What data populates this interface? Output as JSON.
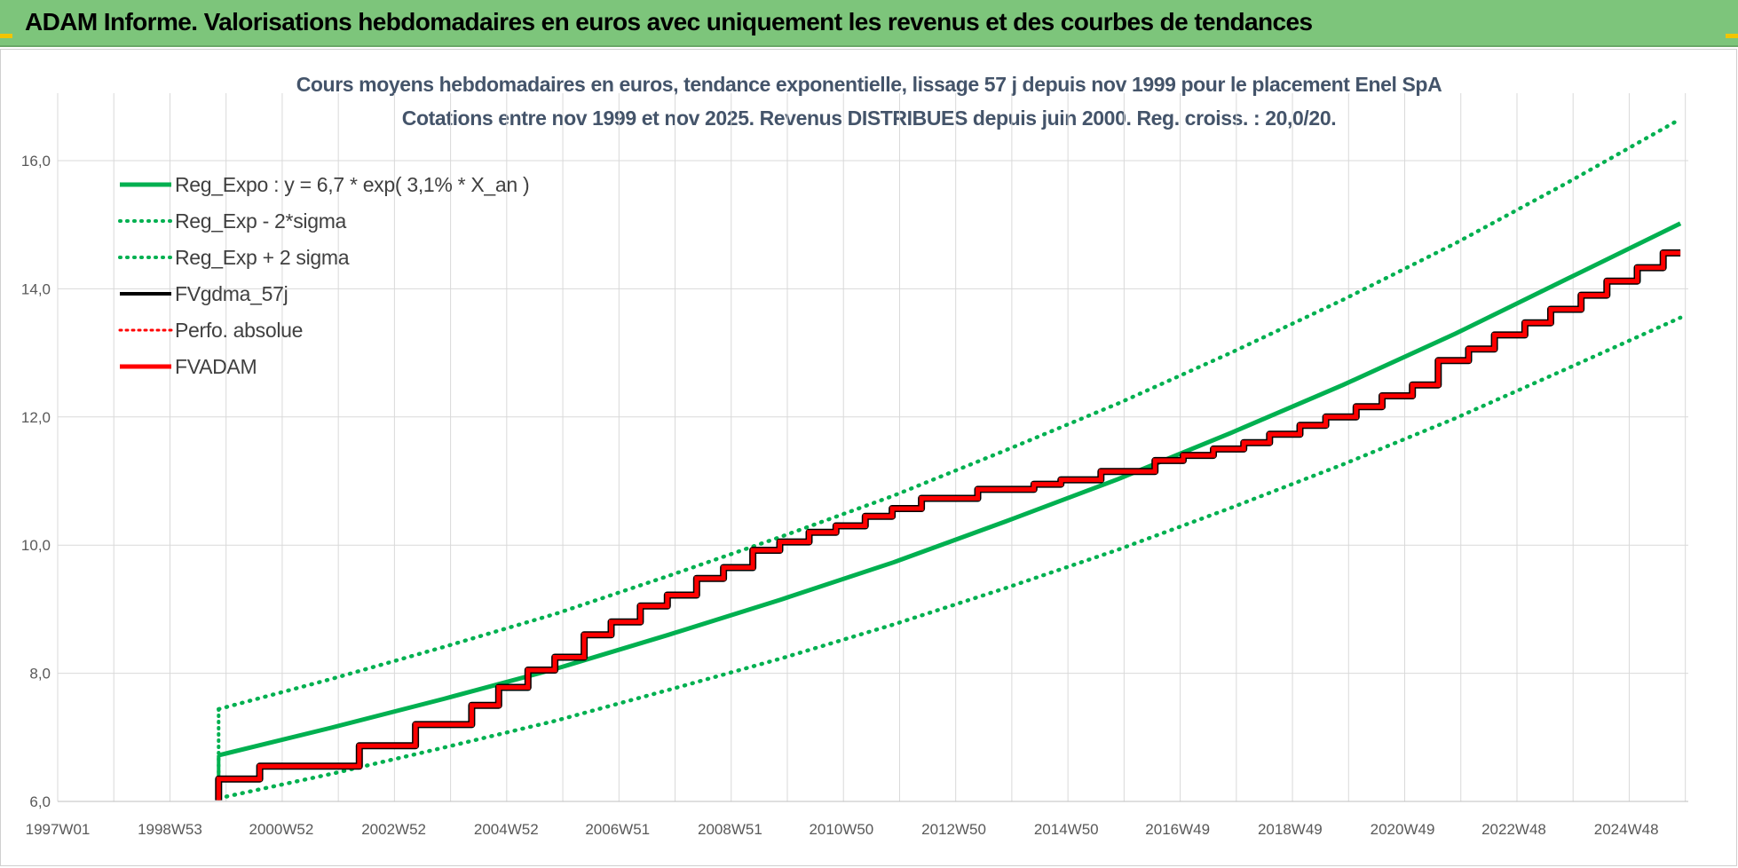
{
  "header": {
    "title": "ADAM Informe. Valorisations hebdomadaires en euros avec uniquement les revenus et des courbes de tendances"
  },
  "colors": {
    "banner": "#7dc57b",
    "trend": "#00b050",
    "fvadam": "#ff0000",
    "fvgdma": "#000000",
    "grid": "#d9d9d9"
  },
  "chart_data": {
    "type": "line",
    "title": "Cours moyens hebdomadaires en euros, tendance exponentielle, lissage 57 j depuis nov 1999 pour le placement Enel SpA",
    "subtitle": "Cotations entre nov 1999 et nov 2025. Revenus DISTRIBUES depuis juin 2000. Reg. croiss. : 20,0/20.",
    "xlabel": "",
    "ylabel": "",
    "ylim": [
      6.0,
      16.0
    ],
    "xlim": [
      "1997W01",
      "2026W48"
    ],
    "x_tick_labels": [
      "1997W01",
      "1998W53",
      "2000W52",
      "2002W52",
      "2004W52",
      "2006W51",
      "2008W51",
      "2010W50",
      "2012W50",
      "2014W50",
      "2016W49",
      "2018W49",
      "2020W49",
      "2022W48",
      "2024W48"
    ],
    "y_tick_labels": [
      "6,0",
      "8,0",
      "10,0",
      "12,0",
      "14,0",
      "16,0"
    ],
    "grid": true,
    "legend_position": "top-left",
    "series": [
      {
        "name": "Reg_Expo : y = 6,7 * exp( 3,1% *  X_an )",
        "style": "solid-green-thick",
        "points": [
          [
            "1999W46",
            6.72
          ],
          [
            "2001W46",
            7.15
          ],
          [
            "2003W46",
            7.6
          ],
          [
            "2005W46",
            8.07
          ],
          [
            "2007W46",
            8.6
          ],
          [
            "2009W46",
            9.15
          ],
          [
            "2011W46",
            9.73
          ],
          [
            "2013W46",
            10.37
          ],
          [
            "2015W46",
            11.03
          ],
          [
            "2017W46",
            11.75
          ],
          [
            "2019W46",
            12.5
          ],
          [
            "2021W46",
            13.3
          ],
          [
            "2023W46",
            14.16
          ],
          [
            "2025W46",
            15.02
          ]
        ]
      },
      {
        "name": "Reg_Exp - 2*sigma",
        "style": "dotted-green",
        "points": [
          [
            "1999W46",
            6.05
          ],
          [
            "2001W46",
            6.43
          ],
          [
            "2003W46",
            6.84
          ],
          [
            "2005W46",
            7.26
          ],
          [
            "2007W46",
            7.74
          ],
          [
            "2009W46",
            8.23
          ],
          [
            "2011W46",
            8.76
          ],
          [
            "2013W46",
            9.33
          ],
          [
            "2015W46",
            9.93
          ],
          [
            "2017W46",
            10.58
          ],
          [
            "2019W46",
            11.26
          ],
          [
            "2021W46",
            11.98
          ],
          [
            "2023W46",
            12.76
          ],
          [
            "2025W46",
            13.55
          ]
        ]
      },
      {
        "name": "Reg_Exp + 2 sigma",
        "style": "dotted-green",
        "points": [
          [
            "1999W46",
            7.44
          ],
          [
            "2001W46",
            7.91
          ],
          [
            "2003W46",
            8.41
          ],
          [
            "2005W46",
            8.93
          ],
          [
            "2007W46",
            9.52
          ],
          [
            "2009W46",
            10.13
          ],
          [
            "2011W46",
            10.77
          ],
          [
            "2013W46",
            11.48
          ],
          [
            "2015W46",
            12.21
          ],
          [
            "2017W46",
            13.0
          ],
          [
            "2019W46",
            13.83
          ],
          [
            "2021W46",
            14.71
          ],
          [
            "2023W46",
            15.66
          ],
          [
            "2025W46",
            16.65
          ]
        ]
      },
      {
        "name": "FVgdma_57j",
        "style": "solid-black",
        "note_equals": "FVADAM smoothed (57 days)"
      },
      {
        "name": "Perfo. absolue",
        "style": "dotted-red",
        "note_equals": "overlaps FVADAM"
      },
      {
        "name": "FVADAM",
        "style": "solid-red-thick",
        "start": [
          "1999W46",
          6.02
        ],
        "steps": [
          [
            "1999W46",
            6.35
          ],
          [
            "2000W32",
            6.55
          ],
          [
            "2002W20",
            6.87
          ],
          [
            "2003W20",
            7.2
          ],
          [
            "2004W20",
            7.5
          ],
          [
            "2004W45",
            7.78
          ],
          [
            "2005W20",
            8.05
          ],
          [
            "2005W45",
            8.25
          ],
          [
            "2006W20",
            8.6
          ],
          [
            "2006W45",
            8.8
          ],
          [
            "2007W20",
            9.05
          ],
          [
            "2007W45",
            9.22
          ],
          [
            "2008W20",
            9.48
          ],
          [
            "2008W45",
            9.65
          ],
          [
            "2009W20",
            9.92
          ],
          [
            "2009W45",
            10.05
          ],
          [
            "2010W20",
            10.2
          ],
          [
            "2010W45",
            10.3
          ],
          [
            "2011W20",
            10.45
          ],
          [
            "2011W45",
            10.57
          ],
          [
            "2012W20",
            10.73
          ],
          [
            "2013W20",
            10.87
          ],
          [
            "2014W20",
            10.95
          ],
          [
            "2014W45",
            11.02
          ],
          [
            "2015W30",
            11.15
          ],
          [
            "2016W28",
            11.32
          ],
          [
            "2017W02",
            11.4
          ],
          [
            "2017W30",
            11.5
          ],
          [
            "2018W06",
            11.6
          ],
          [
            "2018W30",
            11.73
          ],
          [
            "2019W06",
            11.87
          ],
          [
            "2019W30",
            12.0
          ],
          [
            "2020W06",
            12.16
          ],
          [
            "2020W30",
            12.33
          ],
          [
            "2021W06",
            12.5
          ],
          [
            "2021W30",
            12.88
          ],
          [
            "2022W06",
            13.06
          ],
          [
            "2022W30",
            13.28
          ],
          [
            "2023W06",
            13.47
          ],
          [
            "2023W30",
            13.68
          ],
          [
            "2024W06",
            13.9
          ],
          [
            "2024W30",
            14.12
          ],
          [
            "2025W06",
            14.33
          ],
          [
            "2025W30",
            14.56
          ]
        ],
        "end": [
          "2025W46",
          14.58
        ]
      }
    ]
  }
}
